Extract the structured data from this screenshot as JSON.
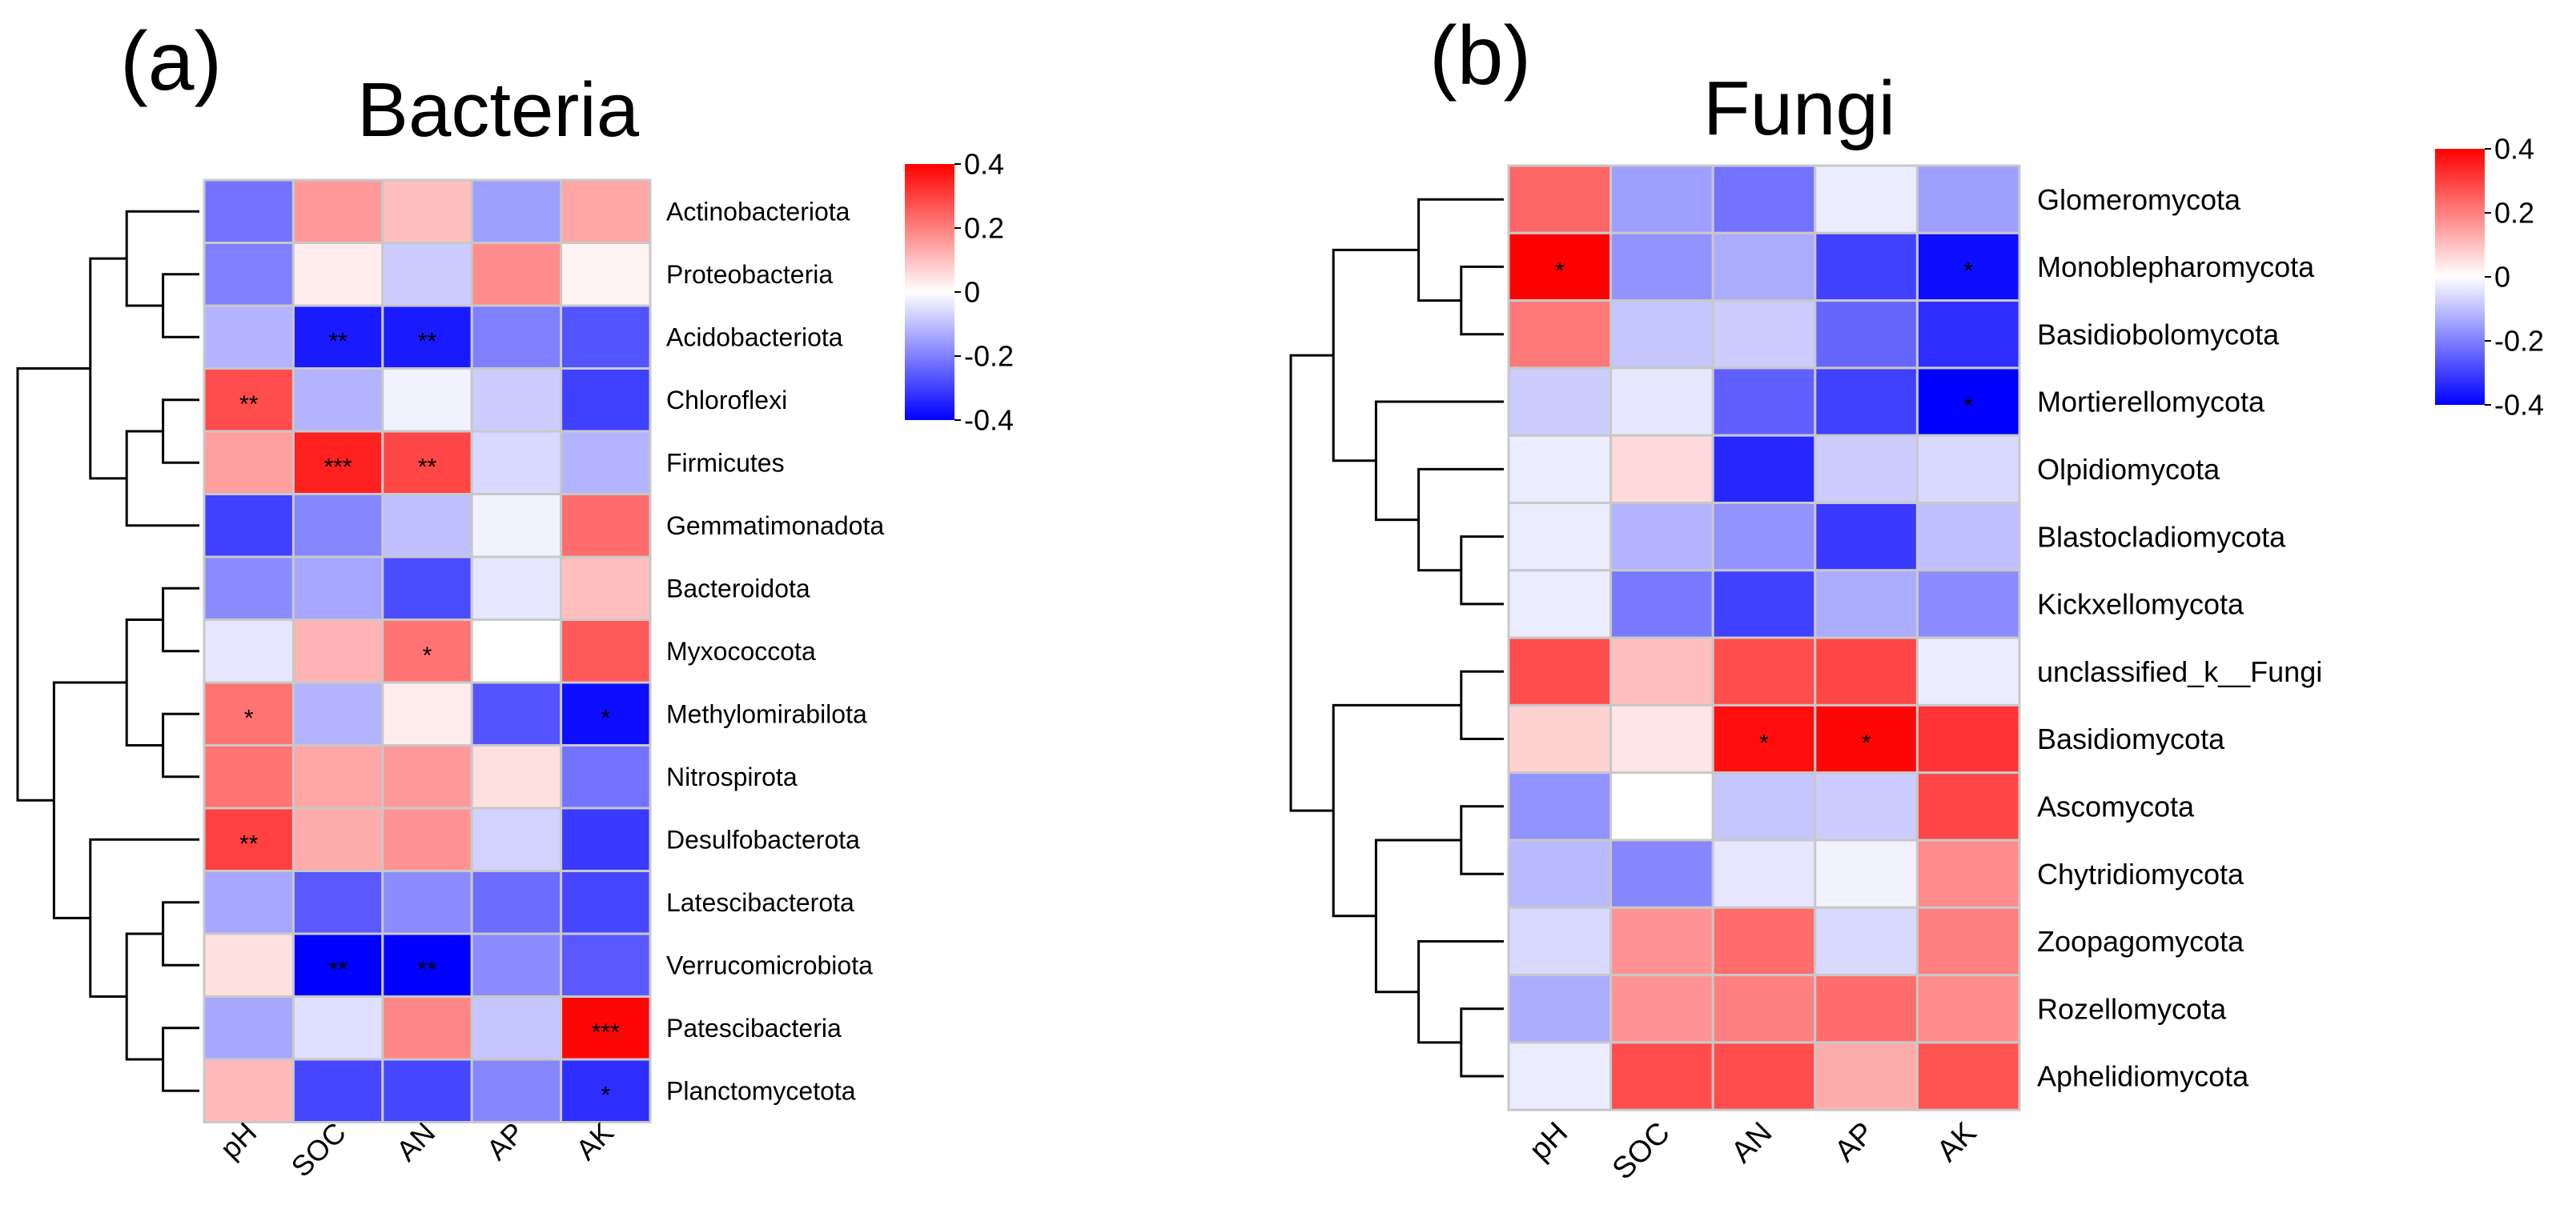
{
  "panels": [
    {
      "panel_label": "(a)",
      "title": "Bacteria"
    },
    {
      "panel_label": "(b)",
      "title": "Fungi"
    }
  ],
  "colors": {
    "negative": "#0000FF",
    "zero": "#FFFFFF",
    "positive": "#FF0000",
    "cell_border": "#C8C8C8",
    "dendrogram": "#000000"
  },
  "chart_data": [
    {
      "type": "heatmap",
      "title": "Bacteria",
      "panel_label": "(a)",
      "columns": [
        "pH",
        "SOC",
        "AN",
        "AP",
        "AK"
      ],
      "rows": [
        "Actinobacteriota",
        "Proteobacteria",
        "Acidobacteriota",
        "Chloroflexi",
        "Firmicutes",
        "Gemmatimonadota",
        "Bacteroidota",
        "Myxococcota",
        "Methylomirabilota",
        "Nitrospirota",
        "Desulfobacterota",
        "Latescibacterota",
        "Verrucomicrobiota",
        "Patescibacteria",
        "Planctomycetota"
      ],
      "values": [
        [
          -0.22,
          0.16,
          0.1,
          -0.15,
          0.14
        ],
        [
          -0.2,
          0.03,
          -0.08,
          0.18,
          0.02
        ],
        [
          -0.12,
          -0.36,
          -0.36,
          -0.2,
          -0.27
        ],
        [
          0.28,
          -0.12,
          -0.02,
          -0.08,
          -0.3
        ],
        [
          0.15,
          0.35,
          0.29,
          -0.06,
          -0.12
        ],
        [
          -0.3,
          -0.19,
          -0.1,
          -0.02,
          0.23
        ],
        [
          -0.18,
          -0.14,
          -0.28,
          -0.04,
          0.1
        ],
        [
          -0.04,
          0.12,
          0.22,
          0.0,
          0.26
        ],
        [
          0.22,
          -0.12,
          0.03,
          -0.27,
          -0.38
        ],
        [
          0.22,
          0.14,
          0.16,
          0.05,
          -0.22
        ],
        [
          0.3,
          0.13,
          0.17,
          -0.07,
          -0.31
        ],
        [
          -0.14,
          -0.26,
          -0.18,
          -0.23,
          -0.29
        ],
        [
          0.05,
          -0.4,
          -0.4,
          -0.18,
          -0.26
        ],
        [
          -0.14,
          -0.05,
          0.19,
          -0.09,
          0.39
        ],
        [
          0.11,
          -0.29,
          -0.29,
          -0.19,
          -0.33
        ]
      ],
      "significance": [
        [
          "",
          "",
          "",
          "",
          ""
        ],
        [
          "",
          "",
          "",
          "",
          ""
        ],
        [
          "",
          "**",
          "**",
          "",
          ""
        ],
        [
          "**",
          "",
          "",
          "",
          ""
        ],
        [
          "",
          "***",
          "**",
          "",
          ""
        ],
        [
          "",
          "",
          "",
          "",
          ""
        ],
        [
          "",
          "",
          "",
          "",
          ""
        ],
        [
          "",
          "",
          "*",
          "",
          ""
        ],
        [
          "*",
          "",
          "",
          "",
          "*"
        ],
        [
          "",
          "",
          "",
          "",
          ""
        ],
        [
          "**",
          "",
          "",
          "",
          ""
        ],
        [
          "",
          "",
          "",
          "",
          ""
        ],
        [
          "",
          "**",
          "**",
          "",
          ""
        ],
        [
          "",
          "",
          "",
          "",
          "***"
        ],
        [
          "",
          "",
          "",
          "",
          "*"
        ]
      ],
      "colorbar": {
        "range": [
          -0.4,
          0.4
        ],
        "ticks": [
          "0.4",
          "0.2",
          "0",
          "-0.2",
          "-0.4"
        ]
      }
    },
    {
      "type": "heatmap",
      "title": "Fungi",
      "panel_label": "(b)",
      "columns": [
        "pH",
        "SOC",
        "AN",
        "AP",
        "AK"
      ],
      "rows": [
        "Glomeromycota",
        "Monoblepharomycota",
        "Basidiobolomycota",
        "Mortierellomycota",
        "Olpidiomycota",
        "Blastocladiomycota",
        "Kickxellomycota",
        "unclassified_k__Fungi",
        "Basidiomycota",
        "Ascomycota",
        "Chytridiomycota",
        "Zoopagomycota",
        "Rozellomycota",
        "Aphelidiomycota"
      ],
      "values": [
        [
          0.24,
          -0.15,
          -0.22,
          -0.03,
          -0.15
        ],
        [
          0.4,
          -0.17,
          -0.13,
          -0.3,
          -0.38
        ],
        [
          0.21,
          -0.09,
          -0.08,
          -0.24,
          -0.33
        ],
        [
          -0.08,
          -0.04,
          -0.25,
          -0.3,
          -0.4
        ],
        [
          -0.03,
          0.06,
          -0.34,
          -0.08,
          -0.06
        ],
        [
          -0.03,
          -0.12,
          -0.17,
          -0.31,
          -0.1
        ],
        [
          -0.03,
          -0.21,
          -0.3,
          -0.13,
          -0.18
        ],
        [
          0.28,
          0.1,
          0.28,
          0.29,
          -0.03
        ],
        [
          0.07,
          0.04,
          0.38,
          0.39,
          0.32
        ],
        [
          -0.17,
          0.0,
          -0.09,
          -0.08,
          0.29
        ],
        [
          -0.11,
          -0.19,
          -0.04,
          -0.02,
          0.18
        ],
        [
          -0.06,
          0.17,
          0.23,
          -0.06,
          0.2
        ],
        [
          -0.13,
          0.17,
          0.2,
          0.23,
          0.18
        ],
        [
          -0.03,
          0.28,
          0.28,
          0.13,
          0.27
        ]
      ],
      "significance": [
        [
          "",
          "",
          "",
          "",
          ""
        ],
        [
          "*",
          "",
          "",
          "",
          "*"
        ],
        [
          "",
          "",
          "",
          "",
          ""
        ],
        [
          "",
          "",
          "",
          "",
          "*"
        ],
        [
          "",
          "",
          "",
          "",
          ""
        ],
        [
          "",
          "",
          "",
          "",
          ""
        ],
        [
          "",
          "",
          "",
          "",
          ""
        ],
        [
          "",
          "",
          "",
          "",
          ""
        ],
        [
          "",
          "",
          "*",
          "*",
          ""
        ],
        [
          "",
          "",
          "",
          "",
          ""
        ],
        [
          "",
          "",
          "",
          "",
          ""
        ],
        [
          "",
          "",
          "",
          "",
          ""
        ],
        [
          "",
          "",
          "",
          "",
          ""
        ],
        [
          "",
          "",
          "",
          "",
          ""
        ]
      ],
      "colorbar": {
        "range": [
          -0.4,
          0.4
        ],
        "ticks": [
          "0.4",
          "0.2",
          "0",
          "-0.2",
          "-0.4"
        ]
      }
    }
  ]
}
